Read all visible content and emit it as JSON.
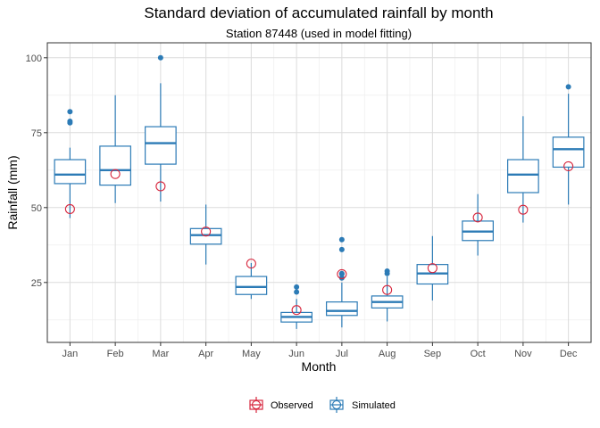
{
  "chart_data": {
    "type": "box",
    "title": "Standard deviation of accumulated rainfall by month",
    "subtitle": "Station 87448 (used in model fitting)",
    "xlabel": "Month",
    "ylabel": "Rainfall (mm)",
    "ylim": [
      5,
      105
    ],
    "yticks": [
      25,
      50,
      75,
      100
    ],
    "grid": true,
    "legend_position": "bottom",
    "categories": [
      "Jan",
      "Feb",
      "Mar",
      "Apr",
      "May",
      "Jun",
      "Jul",
      "Aug",
      "Sep",
      "Oct",
      "Nov",
      "Dec"
    ],
    "series": [
      {
        "name": "Observed",
        "color": "#d7263d",
        "marker": "open-circle",
        "values": [
          49.5,
          61.2,
          57.1,
          42.0,
          31.3,
          15.8,
          27.8,
          22.5,
          29.8,
          46.7,
          49.3,
          63.8
        ]
      },
      {
        "name": "Simulated",
        "color": "#2c7bb6",
        "boxes": [
          {
            "min": 46.5,
            "q1": 58.0,
            "median": 61.0,
            "q3": 66.0,
            "max": 70.0,
            "outliers": [
              78.3,
              78.8,
              82.0
            ]
          },
          {
            "min": 51.5,
            "q1": 57.5,
            "median": 62.5,
            "q3": 70.5,
            "max": 87.5,
            "outliers": []
          },
          {
            "min": 52.0,
            "q1": 64.5,
            "median": 71.5,
            "q3": 77.0,
            "max": 91.5,
            "outliers": [
              100.0
            ]
          },
          {
            "min": 31.0,
            "q1": 37.8,
            "median": 40.8,
            "q3": 43.0,
            "max": 51.0,
            "outliers": []
          },
          {
            "min": 19.5,
            "q1": 21.0,
            "median": 23.5,
            "q3": 27.0,
            "max": 31.5,
            "outliers": []
          },
          {
            "min": 9.5,
            "q1": 11.8,
            "median": 13.5,
            "q3": 15.0,
            "max": 19.5,
            "outliers": [
              21.8,
              23.5
            ]
          },
          {
            "min": 10.0,
            "q1": 14.0,
            "median": 15.5,
            "q3": 18.5,
            "max": 25.0,
            "outliers": [
              26.5,
              27.8,
              28.0,
              36.0,
              39.3
            ]
          },
          {
            "min": 12.0,
            "q1": 16.5,
            "median": 18.5,
            "q3": 20.5,
            "max": 27.0,
            "outliers": [
              28.0,
              28.8
            ]
          },
          {
            "min": 19.0,
            "q1": 24.5,
            "median": 28.0,
            "q3": 31.0,
            "max": 40.5,
            "outliers": []
          },
          {
            "min": 34.0,
            "q1": 39.0,
            "median": 42.0,
            "q3": 45.5,
            "max": 54.5,
            "outliers": []
          },
          {
            "min": 45.0,
            "q1": 55.0,
            "median": 61.0,
            "q3": 66.0,
            "max": 80.5,
            "outliers": []
          },
          {
            "min": 51.0,
            "q1": 63.5,
            "median": 69.5,
            "q3": 73.5,
            "max": 88.0,
            "outliers": [
              90.3
            ]
          }
        ]
      }
    ]
  }
}
